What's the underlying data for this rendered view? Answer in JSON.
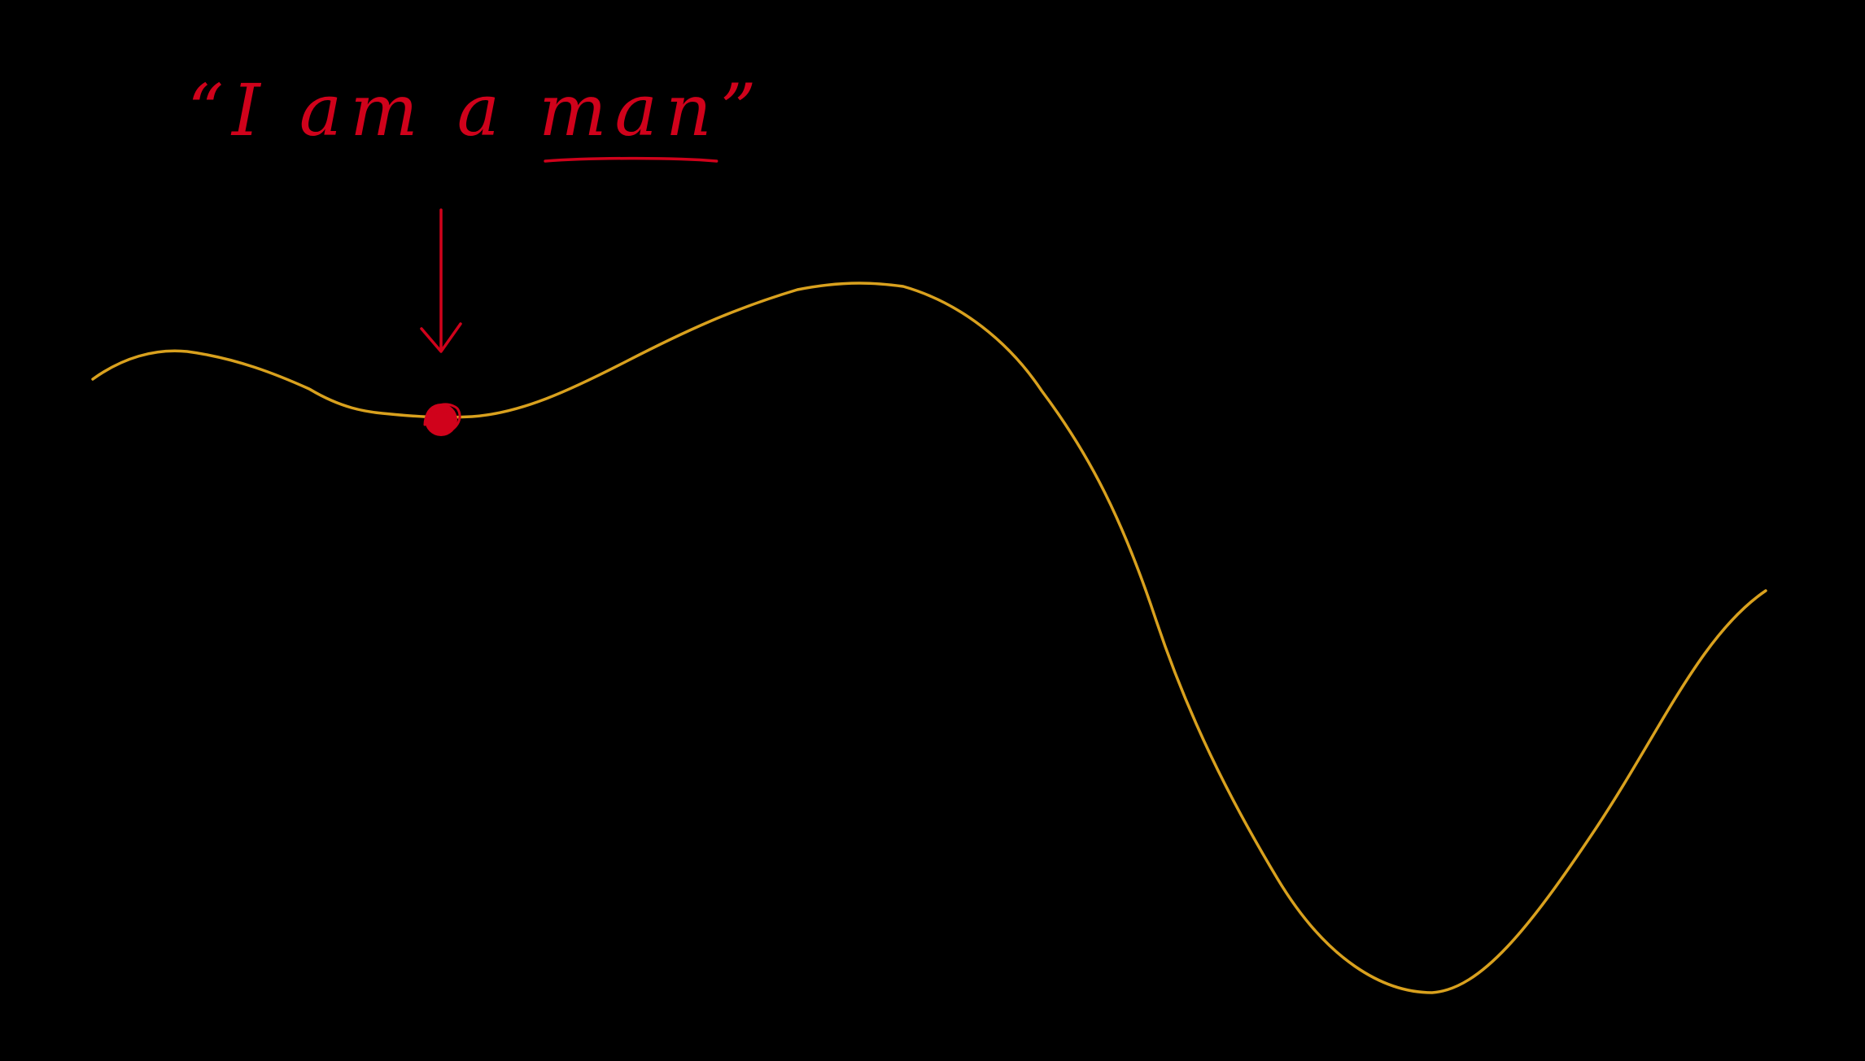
{
  "annotation": {
    "open_quote": "“",
    "text_before": "I am a ",
    "emphasis": "man",
    "close_quote": "”"
  },
  "colors": {
    "background": "#000000",
    "curve": "#D9A11E",
    "ink": "#D0021B"
  }
}
